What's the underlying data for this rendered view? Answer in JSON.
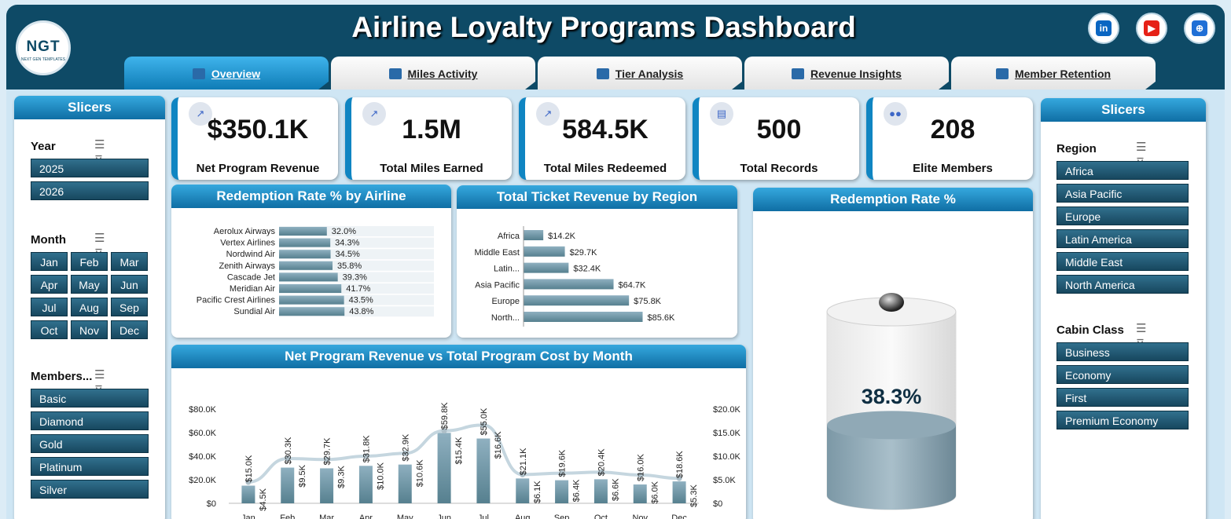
{
  "header": {
    "title": "Airline Loyalty Programs Dashboard",
    "logo_text": "NGT",
    "logo_subtext": "NEXT GEN TEMPLATES",
    "social": [
      {
        "name": "linkedin-icon",
        "glyph": "in",
        "color": "#0a66c2"
      },
      {
        "name": "youtube-icon",
        "glyph": "▶",
        "color": "#e62117"
      },
      {
        "name": "globe-icon",
        "glyph": "⊕",
        "color": "#1f6fd6"
      }
    ]
  },
  "tabs": [
    {
      "label": "Overview",
      "active": true
    },
    {
      "label": "Miles Activity",
      "active": false
    },
    {
      "label": "Tier Analysis",
      "active": false
    },
    {
      "label": "Revenue Insights",
      "active": false
    },
    {
      "label": "Member Retention",
      "active": false
    }
  ],
  "left_slicers": {
    "title": "Slicers",
    "year": {
      "title": "Year",
      "items": [
        "2025",
        "2026"
      ]
    },
    "month": {
      "title": "Month",
      "items": [
        "Jan",
        "Feb",
        "Mar",
        "Apr",
        "May",
        "Jun",
        "Jul",
        "Aug",
        "Sep",
        "Oct",
        "Nov",
        "Dec"
      ]
    },
    "membership": {
      "title": "Members...",
      "items": [
        "Basic",
        "Diamond",
        "Gold",
        "Platinum",
        "Silver"
      ]
    }
  },
  "right_slicers": {
    "title": "Slicers",
    "region": {
      "title": "Region",
      "items": [
        "Africa",
        "Asia Pacific",
        "Europe",
        "Latin America",
        "Middle East",
        "North America"
      ]
    },
    "cabin": {
      "title": "Cabin Class",
      "items": [
        "Business",
        "Economy",
        "First",
        "Premium Economy"
      ]
    }
  },
  "kpis": [
    {
      "value": "$350.1K",
      "label": "Net Program Revenue",
      "icon": "chart-icon"
    },
    {
      "value": "1.5M",
      "label": "Total Miles Earned",
      "icon": "chart-icon"
    },
    {
      "value": "584.5K",
      "label": "Total Miles Redeemed",
      "icon": "chart-icon"
    },
    {
      "value": "500",
      "label": "Total Records",
      "icon": "clipboard-icon"
    },
    {
      "value": "208",
      "label": "Elite Members",
      "icon": "people-icon"
    }
  ],
  "chart_data": [
    {
      "type": "bar",
      "orientation": "horizontal",
      "title": "Redemption Rate % by Airline",
      "categories": [
        "Aerolux Airways",
        "Vertex Airlines",
        "Nordwind Air",
        "Zenith Airways",
        "Cascade Jet",
        "Meridian Air",
        "Pacific Crest Airlines",
        "Sundial Air"
      ],
      "values": [
        32.0,
        34.3,
        34.5,
        35.8,
        39.3,
        41.7,
        43.5,
        43.8
      ],
      "labels": [
        "32.0%",
        "34.3%",
        "34.5%",
        "35.8%",
        "39.3%",
        "41.7%",
        "43.5%",
        "43.8%"
      ],
      "xlim": [
        0,
        100
      ]
    },
    {
      "type": "bar",
      "orientation": "horizontal",
      "title": "Total Ticket Revenue by Region",
      "categories": [
        "Africa",
        "Middle East",
        "Latin...",
        "Asia Pacific",
        "Europe",
        "North..."
      ],
      "values": [
        14.2,
        29.7,
        32.4,
        64.7,
        75.8,
        85.6
      ],
      "labels": [
        "$14.2K",
        "$29.7K",
        "$32.4K",
        "$64.7K",
        "$75.8K",
        "$85.6K"
      ],
      "xlim": [
        0,
        100
      ]
    },
    {
      "type": "gauge",
      "title": "Redemption Rate %",
      "value": 38.3,
      "label": "38.3%"
    },
    {
      "type": "bar",
      "title": "Net Program Revenue vs Total Program Cost by Month",
      "categories": [
        "Jan",
        "Feb",
        "Mar",
        "Apr",
        "May",
        "Jun",
        "Jul",
        "Aug",
        "Sep",
        "Oct",
        "Nov",
        "Dec"
      ],
      "series": [
        {
          "name": "Net Program Revenue",
          "type": "bar",
          "axis": "left",
          "color": "#6e98ab",
          "values": [
            15.0,
            30.3,
            29.7,
            31.8,
            32.9,
            59.8,
            55.0,
            21.1,
            19.6,
            20.4,
            16.0,
            18.6
          ],
          "labels": [
            "$15.0K",
            "$30.3K",
            "$29.7K",
            "$31.8K",
            "$32.9K",
            "$59.8K",
            "$55.0K",
            "$21.1K",
            "$19.6K",
            "$20.4K",
            "$16.0K",
            "$18.6K"
          ]
        },
        {
          "name": "Total Program Cost",
          "type": "line",
          "axis": "right",
          "color": "#c5d6df",
          "values": [
            4.5,
            9.5,
            9.3,
            10.0,
            10.6,
            15.4,
            16.6,
            6.1,
            6.4,
            6.6,
            6.0,
            5.3
          ],
          "labels": [
            "$4.5K",
            "$9.5K",
            "$9.3K",
            "$10.0K",
            "$10.6K",
            "$15.4K",
            "$16.6K",
            "$6.1K",
            "$6.4K",
            "$6.6K",
            "$6.0K",
            "$5.3K"
          ]
        }
      ],
      "ylim_left": [
        0,
        80
      ],
      "yticks_left": [
        "$0",
        "$20.0K",
        "$40.0K",
        "$60.0K",
        "$80.0K"
      ],
      "ylim_right": [
        0,
        20
      ],
      "yticks_right": [
        "$0",
        "$5.0K",
        "$10.0K",
        "$15.0K",
        "$20.0K"
      ],
      "legend": "bottom",
      "grid": false
    }
  ]
}
